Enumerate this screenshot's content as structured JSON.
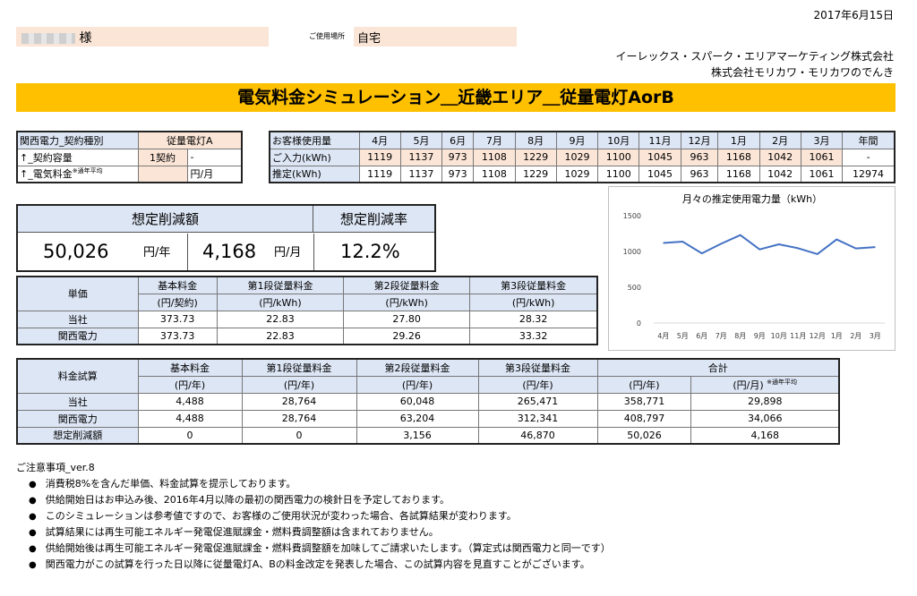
{
  "date": "2017年6月15日",
  "customer": {
    "suffix": "様",
    "place_label": "ご使用場所",
    "place": "自宅"
  },
  "company": {
    "line1": "イーレックス・スパーク・エリアマーケティング株式会社",
    "line2": "株式会社モリカワ・モリカワのでんき"
  },
  "title": "電気料金シミュレーション＿近畿エリア＿従量電灯AorB",
  "contract": {
    "r1": [
      "関西電力_契約種別",
      "従量電灯A"
    ],
    "r2": [
      "↑_契約容量",
      "1契約",
      "-"
    ],
    "r3_label": "↑_電気料金",
    "r3_note": "※通年平均",
    "r3_unit": "円/月"
  },
  "usage": {
    "header": [
      "お客様使用量",
      "4月",
      "5月",
      "6月",
      "7月",
      "8月",
      "9月",
      "10月",
      "11月",
      "12月",
      "1月",
      "2月",
      "3月",
      "年間"
    ],
    "input": [
      "ご入力(kWh)",
      "1119",
      "1137",
      "973",
      "1108",
      "1229",
      "1029",
      "1100",
      "1045",
      "963",
      "1168",
      "1042",
      "1061",
      "-"
    ],
    "estimate": [
      "推定(kWh)",
      "1119",
      "1137",
      "973",
      "1108",
      "1229",
      "1029",
      "1100",
      "1045",
      "963",
      "1168",
      "1042",
      "1061",
      "12974"
    ]
  },
  "saving": {
    "h1": "想定削減額",
    "h2": "想定削減率",
    "yearly": "50,026",
    "yearly_unit": "円/年",
    "monthly": "4,168",
    "monthly_unit": "円/月",
    "rate": "12.2%"
  },
  "unit_price": {
    "label": "単価",
    "cols": [
      "基本料金",
      "第1段従量料金",
      "第2段従量料金",
      "第3段従量料金"
    ],
    "units": [
      "(円/契約)",
      "(円/kWh)",
      "(円/kWh)",
      "(円/kWh)"
    ],
    "rows": [
      [
        "当社",
        "373.73",
        "22.83",
        "27.80",
        "28.32"
      ],
      [
        "関西電力",
        "373.73",
        "22.83",
        "29.26",
        "33.32"
      ]
    ]
  },
  "trial": {
    "label": "料金試算",
    "cols": [
      "基本料金",
      "第1段従量料金",
      "第2段従量料金",
      "第3段従量料金",
      "合計"
    ],
    "units": [
      "(円/年)",
      "(円/年)",
      "(円/年)",
      "(円/年)",
      "(円/年)",
      "(円/月)"
    ],
    "unit_note": "※通年平均",
    "rows": [
      [
        "当社",
        "4,488",
        "28,764",
        "60,048",
        "265,471",
        "358,771",
        "29,898"
      ],
      [
        "関西電力",
        "4,488",
        "28,764",
        "63,204",
        "312,341",
        "408,797",
        "34,066"
      ],
      [
        "想定削減額",
        "0",
        "0",
        "3,156",
        "46,870",
        "50,026",
        "4,168"
      ]
    ]
  },
  "notes": {
    "title": "ご注意事項_ver.8",
    "items": [
      "消費税8%を含んだ単価、料金試算を提示しております。",
      "供給開始日はお申込み後、2016年4月以降の最初の関西電力の検針日を予定しております。",
      "このシミュレーションは参考値ですので、お客様のご使用状況が変わった場合、各試算結果が変わります。",
      "試算結果には再生可能エネルギー発電促進賦課金・燃料費調整額は含まれておりません。",
      "供給開始後は再生可能エネルギー発電促進賦課金・燃料費調整額を加味してご請求いたします。（算定式は関西電力と同一です）",
      "関西電力がこの試算を行った日以降に従量電灯A、Bの料金改定を発表した場合、この試算内容を見直すことがございます。"
    ]
  },
  "chart_data": {
    "type": "line",
    "title": "月々の推定使用電力量（kWh）",
    "categories": [
      "4月",
      "5月",
      "6月",
      "7月",
      "8月",
      "9月",
      "10月",
      "11月",
      "12月",
      "1月",
      "2月",
      "3月"
    ],
    "values": [
      1119,
      1137,
      973,
      1108,
      1229,
      1029,
      1100,
      1045,
      963,
      1168,
      1042,
      1061
    ],
    "ylim": [
      0,
      1500
    ],
    "yticks": [
      "0",
      "500",
      "1000",
      "1500"
    ],
    "color": "#4472c4",
    "grid": false
  }
}
